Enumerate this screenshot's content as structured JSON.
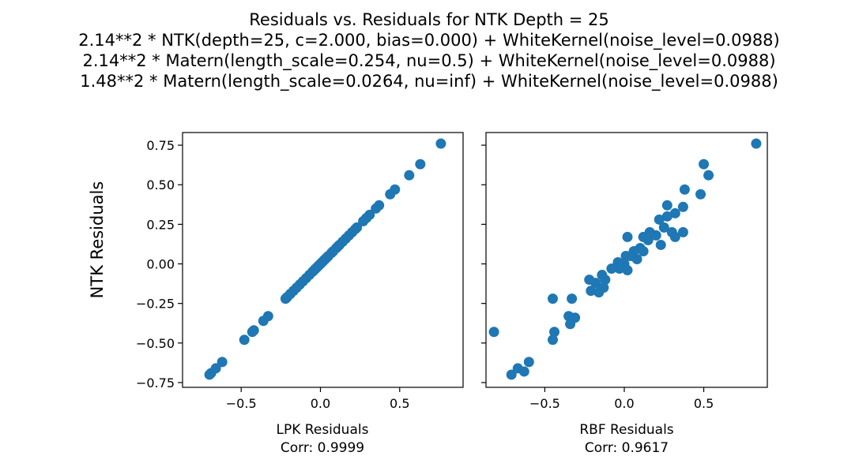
{
  "figure": {
    "title_lines": [
      "Residuals vs. Residuals for NTK Depth = 25",
      "2.14**2 * NTK(depth=25, c=2.000, bias=0.000) + WhiteKernel(noise_level=0.0988)",
      "2.14**2 * Matern(length_scale=0.254, nu=0.5) + WhiteKernel(noise_level=0.0988)",
      "1.48**2 * Matern(length_scale=0.0264, nu=inf) + WhiteKernel(noise_level=0.0988)"
    ],
    "marker_color": "#1f77b4"
  },
  "chart_data": [
    {
      "type": "scatter",
      "xlabel": "LPK Residuals",
      "xlabel_sub": "Corr: 0.9999",
      "ylabel": "NTK Residuals",
      "xlim": [
        -0.87,
        0.9
      ],
      "ylim": [
        -0.78,
        0.83
      ],
      "xticks": [
        -0.5,
        0.0,
        0.5
      ],
      "xtick_labels": [
        "−0.5",
        "0.0",
        "0.5"
      ],
      "yticks": [
        0.75,
        0.5,
        0.25,
        0.0,
        -0.25,
        -0.5,
        -0.75
      ],
      "ytick_labels": [
        "0.75",
        "0.50",
        "0.25",
        "0.00",
        "−0.25",
        "−0.50",
        "−0.75"
      ],
      "points": [
        [
          0.76,
          0.76
        ],
        [
          0.63,
          0.63
        ],
        [
          0.56,
          0.56
        ],
        [
          0.47,
          0.47
        ],
        [
          0.44,
          0.44
        ],
        [
          0.37,
          0.37
        ],
        [
          0.35,
          0.35
        ],
        [
          0.31,
          0.31
        ],
        [
          0.29,
          0.29
        ],
        [
          0.27,
          0.27
        ],
        [
          0.23,
          0.23
        ],
        [
          0.22,
          0.22
        ],
        [
          0.2,
          0.2
        ],
        [
          0.18,
          0.18
        ],
        [
          0.16,
          0.16
        ],
        [
          0.14,
          0.14
        ],
        [
          0.12,
          0.12
        ],
        [
          0.11,
          0.11
        ],
        [
          0.1,
          0.1
        ],
        [
          0.08,
          0.08
        ],
        [
          0.07,
          0.07
        ],
        [
          0.05,
          0.05
        ],
        [
          0.04,
          0.04
        ],
        [
          0.03,
          0.03
        ],
        [
          0.02,
          0.02
        ],
        [
          0.01,
          0.01
        ],
        [
          0.0,
          0.0
        ],
        [
          -0.01,
          -0.01
        ],
        [
          -0.02,
          -0.02
        ],
        [
          -0.03,
          -0.03
        ],
        [
          -0.04,
          -0.04
        ],
        [
          -0.05,
          -0.05
        ],
        [
          -0.07,
          -0.07
        ],
        [
          -0.09,
          -0.09
        ],
        [
          -0.11,
          -0.11
        ],
        [
          -0.13,
          -0.13
        ],
        [
          -0.15,
          -0.15
        ],
        [
          -0.17,
          -0.17
        ],
        [
          -0.19,
          -0.19
        ],
        [
          -0.21,
          -0.21
        ],
        [
          -0.22,
          -0.22
        ],
        [
          -0.33,
          -0.33
        ],
        [
          -0.36,
          -0.36
        ],
        [
          -0.42,
          -0.42
        ],
        [
          -0.43,
          -0.43
        ],
        [
          -0.48,
          -0.48
        ],
        [
          -0.62,
          -0.62
        ],
        [
          -0.66,
          -0.66
        ],
        [
          -0.69,
          -0.69
        ],
        [
          -0.7,
          -0.7
        ]
      ]
    },
    {
      "type": "scatter",
      "xlabel": "RBF Residuals",
      "xlabel_sub": "Corr: 0.9617",
      "xlim": [
        -0.87,
        0.9
      ],
      "ylim": [
        -0.78,
        0.83
      ],
      "xticks": [
        -0.5,
        0.0,
        0.5
      ],
      "xtick_labels": [
        "−0.5",
        "0.0",
        "0.5"
      ],
      "yticks": [
        0.75,
        0.5,
        0.25,
        0.0,
        -0.25,
        -0.5,
        -0.75
      ],
      "points": [
        [
          0.83,
          0.76
        ],
        [
          0.5,
          0.63
        ],
        [
          0.53,
          0.56
        ],
        [
          0.38,
          0.47
        ],
        [
          0.48,
          0.44
        ],
        [
          0.27,
          0.37
        ],
        [
          0.37,
          0.36
        ],
        [
          0.32,
          0.32
        ],
        [
          0.27,
          0.3
        ],
        [
          0.22,
          0.28
        ],
        [
          0.25,
          0.23
        ],
        [
          0.37,
          0.2
        ],
        [
          0.3,
          0.2
        ],
        [
          0.32,
          0.17
        ],
        [
          0.2,
          0.18
        ],
        [
          0.16,
          0.2
        ],
        [
          0.12,
          0.17
        ],
        [
          0.02,
          0.17
        ],
        [
          0.23,
          0.12
        ],
        [
          0.15,
          0.15
        ],
        [
          0.1,
          0.1
        ],
        [
          0.06,
          0.08
        ],
        [
          0.12,
          0.08
        ],
        [
          0.04,
          0.05
        ],
        [
          0.01,
          0.05
        ],
        [
          0.08,
          0.03
        ],
        [
          0.0,
          0.0
        ],
        [
          -0.04,
          0.01
        ],
        [
          0.0,
          -0.02
        ],
        [
          -0.03,
          -0.03
        ],
        [
          0.02,
          -0.04
        ],
        [
          -0.08,
          -0.03
        ],
        [
          -0.14,
          -0.07
        ],
        [
          -0.12,
          -0.1
        ],
        [
          -0.22,
          -0.1
        ],
        [
          -0.18,
          -0.12
        ],
        [
          -0.13,
          -0.15
        ],
        [
          -0.21,
          -0.17
        ],
        [
          -0.16,
          -0.18
        ],
        [
          -0.45,
          -0.22
        ],
        [
          -0.33,
          -0.22
        ],
        [
          -0.35,
          -0.33
        ],
        [
          -0.31,
          -0.34
        ],
        [
          -0.34,
          -0.38
        ],
        [
          -0.44,
          -0.43
        ],
        [
          -0.82,
          -0.43
        ],
        [
          -0.45,
          -0.48
        ],
        [
          -0.6,
          -0.62
        ],
        [
          -0.67,
          -0.66
        ],
        [
          -0.71,
          -0.7
        ],
        [
          -0.63,
          -0.68
        ]
      ]
    }
  ]
}
